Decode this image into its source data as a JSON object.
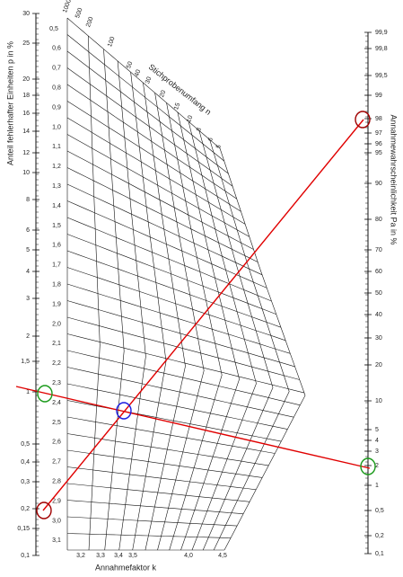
{
  "left_axis": {
    "title": "Anteil fehlerhafter Einheiten p in %",
    "labels": [
      "30",
      "25",
      "20",
      "18",
      "16",
      "14",
      "12",
      "10",
      "8",
      "6",
      "5",
      "4",
      "3",
      "2",
      "1,5",
      "1",
      "0,5",
      "0,4",
      "0,3",
      "0,2",
      "0,15",
      "0,1"
    ]
  },
  "right_axis": {
    "title": "Annahmewahrscheinlichkeit Pa in %",
    "labels": [
      "99,9",
      "99,8",
      "99,5",
      "99",
      "98",
      "97",
      "96",
      "95",
      "90",
      "80",
      "70",
      "60",
      "50",
      "40",
      "30",
      "20",
      "10",
      "5",
      "4",
      "3",
      "2",
      "1",
      "0,5",
      "0,2",
      "0,1"
    ]
  },
  "k_axis": {
    "title": "Annahmefaktor k",
    "labels": [
      "0,5",
      "0,6",
      "0,7",
      "0,8",
      "0,9",
      "1,0",
      "1,1",
      "1,2",
      "1,3",
      "1,4",
      "1,5",
      "1,6",
      "1,7",
      "1,8",
      "1,9",
      "2,0",
      "2,1",
      "2,2",
      "2,3",
      "2,4",
      "2,5",
      "2,6",
      "2,7",
      "2,8",
      "2,9",
      "3,0",
      "3,1",
      "3,2",
      "3,3",
      "3,4",
      "3,5",
      "4,0",
      "4,5"
    ]
  },
  "n_axis": {
    "title": "Stichprobenumfang n",
    "labels": [
      "1000",
      "500",
      "200",
      "100",
      "50",
      "40",
      "30",
      "20",
      "15",
      "10",
      "8",
      "6",
      "5"
    ]
  }
}
